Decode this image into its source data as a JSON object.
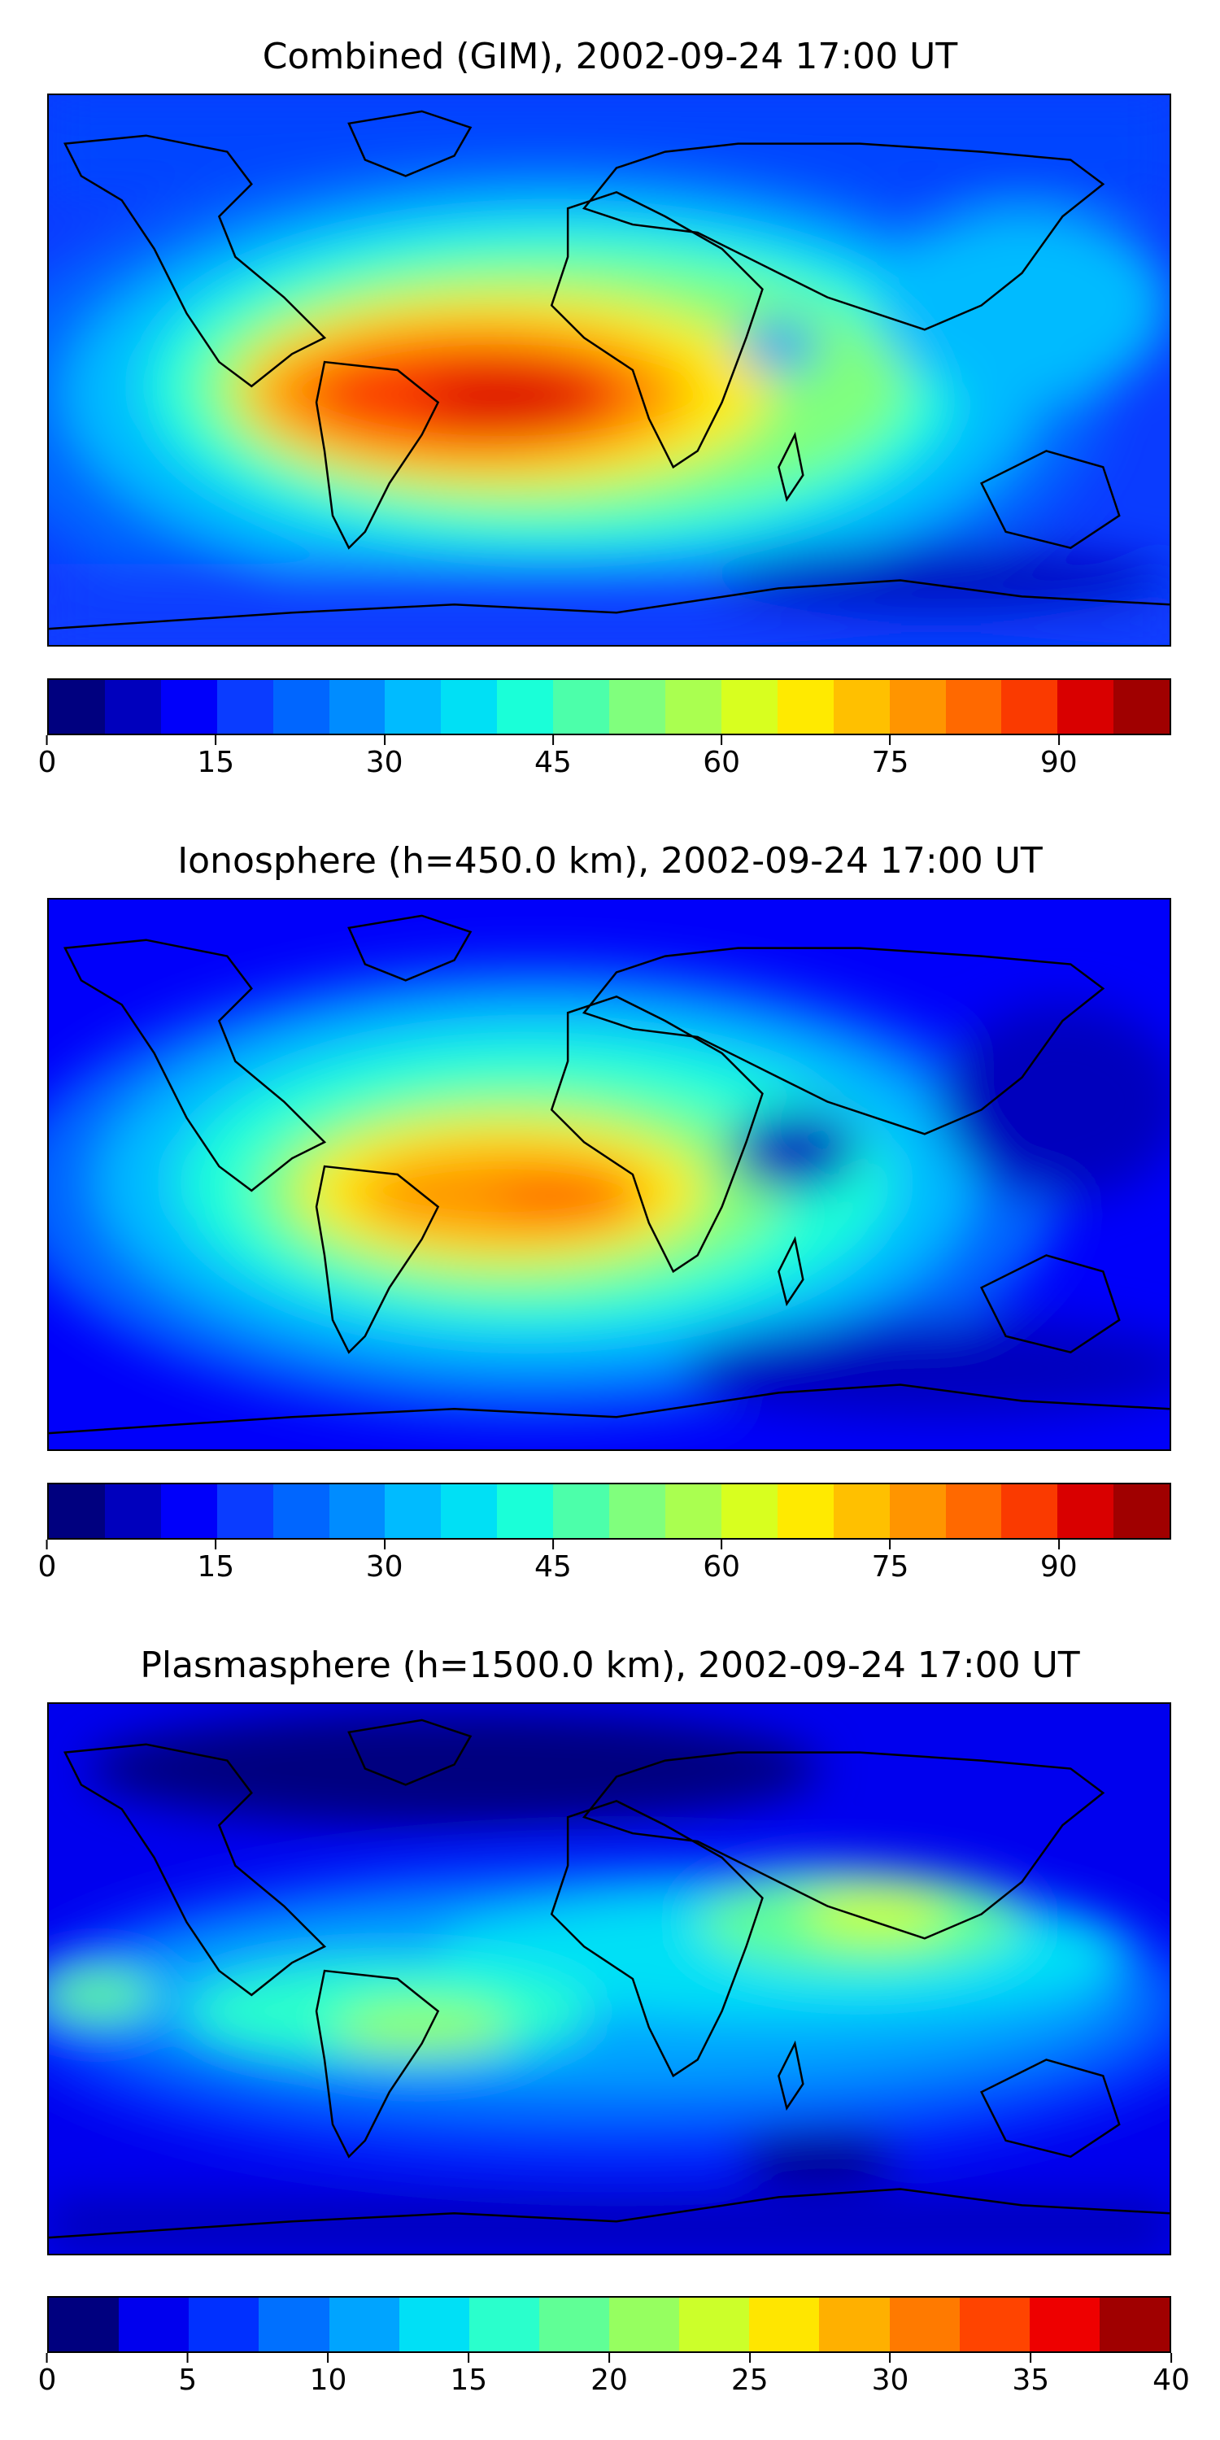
{
  "panels": [
    {
      "id": "combined",
      "title": "Combined (GIM), 2002-09-24 17:00 UT",
      "colorbar": {
        "vmin": 0,
        "vmax": 100,
        "ticks": [
          "0",
          "15",
          "30",
          "45",
          "60",
          "75",
          "90"
        ],
        "tick_values": [
          0,
          15,
          30,
          45,
          60,
          75,
          90
        ],
        "colors": [
          "#00007f",
          "#0000bd",
          "#0000fa",
          "#0a3cff",
          "#0066ff",
          "#008cff",
          "#00bbff",
          "#00e0f5",
          "#1affd8",
          "#4cffaa",
          "#80ff7d",
          "#aaff50",
          "#d8ff1f",
          "#ffea00",
          "#ffc000",
          "#ff9500",
          "#ff6900",
          "#fa3a00",
          "#d90000",
          "#a00000"
        ]
      }
    },
    {
      "id": "ionosphere",
      "title": "Ionosphere  (h=450.0 km), 2002-09-24 17:00 UT",
      "colorbar": {
        "vmin": 0,
        "vmax": 100,
        "ticks": [
          "0",
          "15",
          "30",
          "45",
          "60",
          "75",
          "90"
        ],
        "tick_values": [
          0,
          15,
          30,
          45,
          60,
          75,
          90
        ],
        "colors": [
          "#00007f",
          "#0000bd",
          "#0000fa",
          "#0a3cff",
          "#0066ff",
          "#008cff",
          "#00bbff",
          "#00e0f5",
          "#1affd8",
          "#4cffaa",
          "#80ff7d",
          "#aaff50",
          "#d8ff1f",
          "#ffea00",
          "#ffc000",
          "#ff9500",
          "#ff6900",
          "#fa3a00",
          "#d90000",
          "#a00000"
        ]
      }
    },
    {
      "id": "plasmasphere",
      "title": "Plasmasphere (h=1500.0 km), 2002-09-24 17:00 UT",
      "colorbar": {
        "vmin": 0,
        "vmax": 40,
        "ticks": [
          "0",
          "5",
          "10",
          "15",
          "20",
          "25",
          "30",
          "35",
          "40"
        ],
        "tick_values": [
          0,
          5,
          10,
          15,
          20,
          25,
          30,
          35,
          40
        ],
        "colors": [
          "#00007f",
          "#0000ee",
          "#0030ff",
          "#0070ff",
          "#00a4ff",
          "#00e0f6",
          "#2affcc",
          "#60ff96",
          "#96ff60",
          "#ccff2a",
          "#ffe600",
          "#ffb000",
          "#ff7a00",
          "#ff4400",
          "#ee0000",
          "#a00000"
        ]
      }
    }
  ]
}
